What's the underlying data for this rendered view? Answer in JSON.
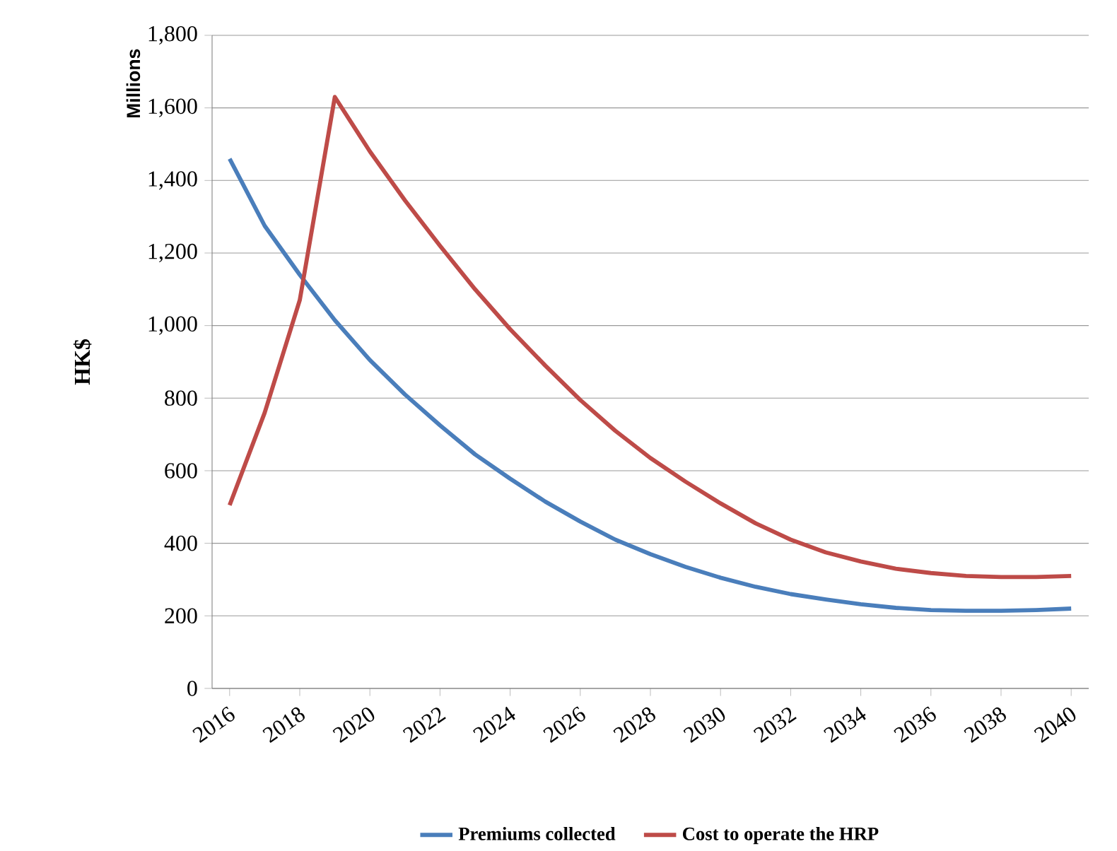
{
  "chart_data": {
    "type": "line",
    "ylabel": "HK$",
    "annotations": [
      "Millions"
    ],
    "categories": [
      "2016",
      null,
      "2018",
      null,
      "2020",
      null,
      "2022",
      null,
      "2024",
      null,
      "2026",
      null,
      "2028",
      null,
      "2030",
      null,
      "2032",
      null,
      "2034",
      null,
      "2036",
      null,
      "2038",
      null,
      "2040"
    ],
    "series": [
      {
        "name": "Premiums collected",
        "color": "#4a7ebb",
        "values": [
          1460,
          1275,
          1140,
          1015,
          905,
          810,
          725,
          645,
          578,
          515,
          460,
          410,
          370,
          335,
          305,
          280,
          260,
          245,
          232,
          222,
          216,
          214,
          214,
          216,
          220
        ]
      },
      {
        "name": "Cost to operate the HRP",
        "color": "#be4b48",
        "values": [
          505,
          760,
          1070,
          1630,
          1480,
          1345,
          1220,
          1100,
          990,
          890,
          795,
          710,
          635,
          570,
          510,
          455,
          410,
          375,
          350,
          330,
          318,
          310,
          307,
          307,
          310
        ]
      }
    ],
    "ylim": [
      0,
      1800
    ],
    "yticks": [
      0,
      200,
      400,
      600,
      800,
      {
        "value": 1000,
        "label": "1,000"
      },
      {
        "value": 1200,
        "label": "1,200"
      },
      {
        "value": 1400,
        "label": "1,400"
      },
      {
        "value": 1600,
        "label": "1,600"
      },
      {
        "value": 1800,
        "label": "1,800"
      }
    ],
    "grid": "y",
    "legend": "bottom",
    "marker": "none",
    "line_style": "solid"
  }
}
